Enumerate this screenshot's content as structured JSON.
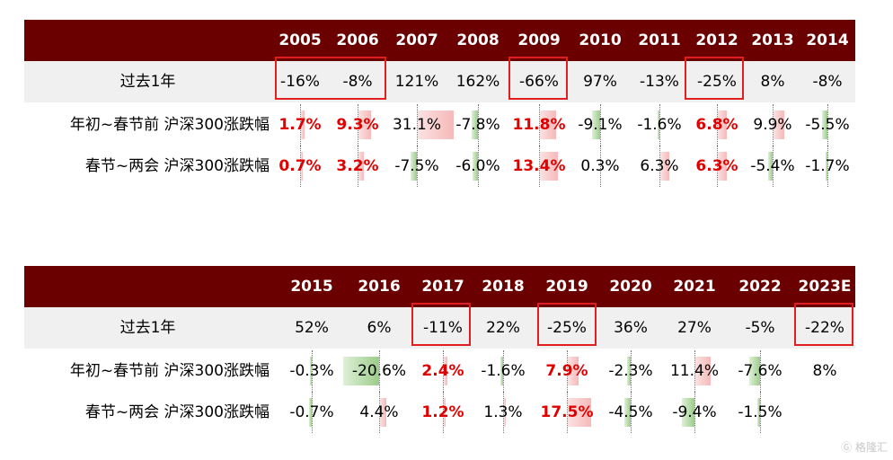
{
  "table1": {
    "years": [
      "2005",
      "2006",
      "2007",
      "2008",
      "2009",
      "2010",
      "2011",
      "2012",
      "2013",
      "2014"
    ],
    "rows": [
      {
        "label": "过去1年",
        "values": [
          "-16%",
          "-8%",
          "121%",
          "162%",
          "-66%",
          "97%",
          "-13%",
          "-25%",
          "8%",
          "-8%"
        ]
      },
      {
        "label": "年初~春节前 沪深300涨跌幅",
        "values": [
          "1.7%",
          "9.3%",
          "31.1%",
          "-7.8%",
          "11.8%",
          "-9.1%",
          "-1.6%",
          "6.8%",
          "9.9%",
          "-5.5%"
        ]
      },
      {
        "label": "春节~两会 沪深300涨跌幅",
        "values": [
          "0.7%",
          "3.2%",
          "-7.5%",
          "-6.0%",
          "13.4%",
          "0.3%",
          "6.3%",
          "6.3%",
          "-5.4%",
          "-1.7%"
        ]
      }
    ]
  },
  "table2": {
    "years": [
      "2015",
      "2016",
      "2017",
      "2018",
      "2019",
      "2020",
      "2021",
      "2022",
      "2023E"
    ],
    "rows": [
      {
        "label": "过去1年",
        "values": [
          "52%",
          "6%",
          "-11%",
          "22%",
          "-25%",
          "36%",
          "27%",
          "-5%",
          "-22%"
        ]
      },
      {
        "label": "年初~春节前 沪深300涨跌幅",
        "values": [
          "-0.3%",
          "-20.6%",
          "2.4%",
          "-1.6%",
          "7.9%",
          "-2.3%",
          "11.4%",
          "-7.6%",
          "8%"
        ]
      },
      {
        "label": "春节~两会 沪深300涨跌幅",
        "values": [
          "-0.7%",
          "4.4%",
          "1.2%",
          "1.3%",
          "17.5%",
          "-4.5%",
          "-9.4%",
          "-1.5%",
          ""
        ]
      }
    ]
  },
  "colors": {
    "header_bg": "#6b0000",
    "highlight": "#e00000",
    "box": "#e02020",
    "row_bg": "#f0f0f0"
  },
  "watermark": "格隆汇"
}
